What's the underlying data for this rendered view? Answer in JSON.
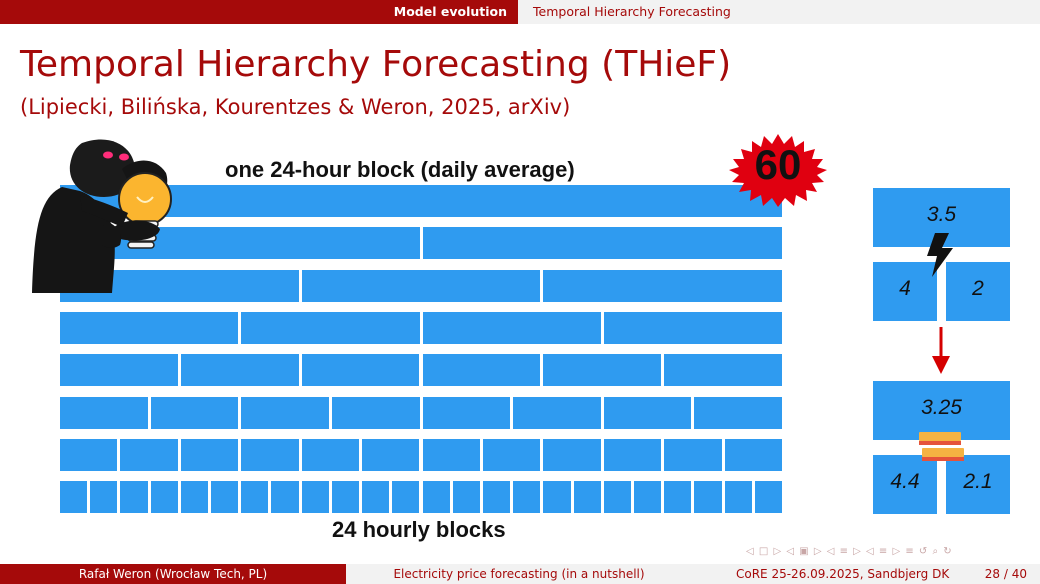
{
  "header": {
    "section": "Model evolution",
    "subsection": "Temporal Hierarchy Forecasting"
  },
  "slide": {
    "title": "Temporal Hierarchy Forecasting (THieF)",
    "subtitle": "(Lipiecki, Bilińska, Kourentzes & Weron, 2025, arXiv)"
  },
  "figure": {
    "top_label": "one 24-hour block (daily average)",
    "bottom_label": "24 hourly blocks",
    "badge_value": "60",
    "hierarchy_rows_blocks": [
      1,
      2,
      3,
      4,
      6,
      8,
      12,
      24
    ],
    "incoherent_example": {
      "parent": "3.5",
      "left_child": "4",
      "right_child": "2"
    },
    "reconciled_example": {
      "parent": "3.25",
      "left_child": "4.4",
      "right_child": "2.1"
    },
    "colors": {
      "block": "#2f9bf0",
      "badge": "#e00010",
      "arrow": "#d50000",
      "accent": "#a50a0a"
    },
    "icons": [
      "person-with-lightbulb-icon",
      "lightning-icon",
      "down-arrow-icon",
      "stack-icon"
    ]
  },
  "navigation": {
    "symbols": "◁ □ ▷ ◁ ▣ ▷ ◁ ≡ ▷ ◁ ≡ ▷ ≡ ↺ ⌕ ↻"
  },
  "footer": {
    "author": "Rafał Weron  (Wrocław Tech, PL)",
    "talk": "Electricity price forecasting (in a nutshell)",
    "conference": "CoRE 25-26.09.2025, Sandbjerg DK",
    "page": "28 / 40"
  }
}
